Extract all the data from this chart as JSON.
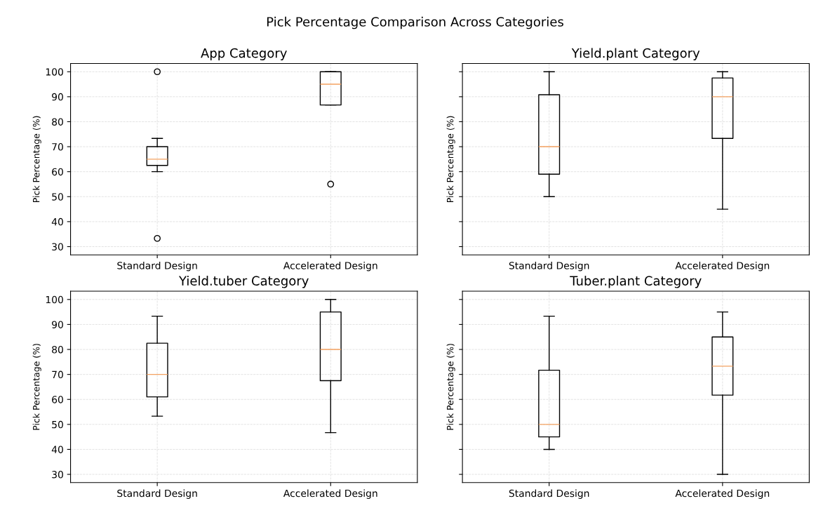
{
  "chart_data": [
    {
      "type": "box",
      "title": "App Category",
      "ylabel": "Pick Percentage (%)",
      "categories": [
        "Standard Design",
        "Accelerated Design"
      ],
      "boxes": [
        {
          "low": 60,
          "q1": 62.5,
          "median": 65,
          "q3": 70,
          "high": 73.3,
          "outliers": [
            100,
            33.3
          ]
        },
        {
          "low": 86.7,
          "q1": 86.7,
          "median": 95,
          "q3": 100,
          "high": 100,
          "outliers": [
            55
          ]
        }
      ],
      "ylim": [
        26.7,
        103.3
      ],
      "yticks": [
        30,
        40,
        50,
        60,
        70,
        80,
        90,
        100
      ],
      "grid": true,
      "annotations": [
        "Pick Percentage Comparison Across Categories"
      ]
    },
    {
      "type": "box",
      "title": "Yield.plant Category",
      "ylabel": "Pick Percentage (%)",
      "categories": [
        "Standard Design",
        "Accelerated Design"
      ],
      "boxes": [
        {
          "low": 50,
          "q1": 59,
          "median": 70,
          "q3": 90.8,
          "high": 100
        },
        {
          "low": 45,
          "q1": 73.3,
          "median": 90,
          "q3": 97.5,
          "high": 100
        }
      ],
      "ylim": [
        26.7,
        103.3
      ],
      "yticks": [
        30,
        40,
        50,
        60,
        70,
        80,
        90,
        100
      ],
      "grid": true,
      "tick_labels": "x"
    },
    {
      "type": "box",
      "title": "Yield.tuber Category",
      "ylabel": "Pick Percentage (%)",
      "categories": [
        "Standard Design",
        "Accelerated Design"
      ],
      "boxes": [
        {
          "low": 53.3,
          "q1": 61,
          "median": 70,
          "q3": 82.5,
          "high": 93.3
        },
        {
          "low": 46.7,
          "q1": 67.5,
          "median": 80,
          "q3": 95,
          "high": 100
        }
      ],
      "ylim": [
        26.7,
        103.3
      ],
      "yticks": [
        30,
        40,
        50,
        60,
        70,
        80,
        90,
        100
      ],
      "grid": true
    },
    {
      "type": "box",
      "title": "Tuber.plant Category",
      "ylabel": "Pick Percentage (%)",
      "categories": [
        "Standard Design",
        "Accelerated Design"
      ],
      "boxes": [
        {
          "low": 40,
          "q1": 45,
          "median": 50,
          "q3": 71.7,
          "high": 93.3
        },
        {
          "low": 30,
          "q1": 61.7,
          "median": 73.3,
          "q3": 85,
          "high": 95
        }
      ],
      "ylim": [
        26.7,
        103.3
      ],
      "yticks": [
        30,
        40,
        50,
        60,
        70,
        80,
        90,
        100
      ],
      "grid": true,
      "tick_labels": "x"
    }
  ]
}
